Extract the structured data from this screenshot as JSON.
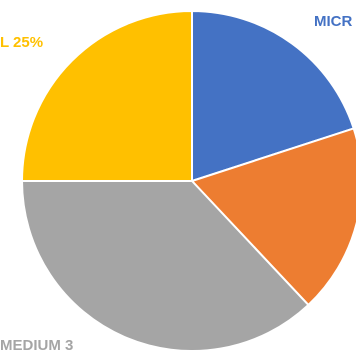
{
  "chart_data": {
    "type": "pie",
    "slices": [
      {
        "label": "MICRO",
        "value": 20,
        "color": "#4472C4",
        "data_label": "MICR"
      },
      {
        "label": "",
        "value": 18,
        "color": "#ED7D31",
        "data_label": ""
      },
      {
        "label": "MEDIUM",
        "value": 37,
        "color": "#A5A5A5",
        "data_label": "MEDIUM 3"
      },
      {
        "label": "",
        "value": 25,
        "color": "#FFC000",
        "data_label": "L 25%"
      }
    ],
    "start_angle_deg": 0,
    "direction": "clockwise"
  }
}
